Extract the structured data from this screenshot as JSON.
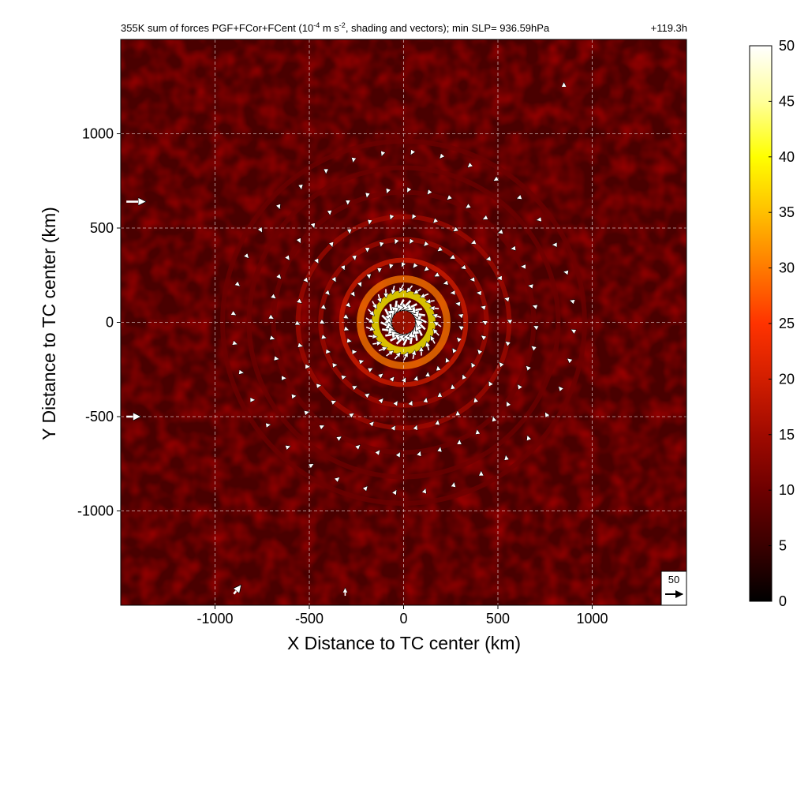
{
  "chart_data": {
    "type": "heatmap",
    "title": "355K sum of forces PGF+FCor+FCent (10",
    "title_units_exp": "-4",
    "title_units_mid": " m s",
    "title_units_exp2": "-2",
    "title_units_tail": ", shading and vectors); min SLP= 936.59hPa",
    "time_label": "+119.3h",
    "xlabel": "X Distance to TC center (km)",
    "ylabel": "Y Distance to TC center (km)",
    "xlim": [
      -1500,
      1500
    ],
    "ylim": [
      -1500,
      1500
    ],
    "x_ticks": [
      -1000,
      -500,
      0,
      500,
      1000
    ],
    "y_ticks": [
      -1000,
      -500,
      0,
      500,
      1000
    ],
    "x_tick_labels": [
      "-1000",
      "-500",
      "0",
      "500",
      "1000"
    ],
    "y_tick_labels": [
      "-1000",
      "-500",
      "0",
      "500",
      "1000"
    ],
    "grid": true,
    "colorbar": {
      "min": 0,
      "max": 50,
      "ticks": [
        0,
        5,
        10,
        15,
        20,
        25,
        30,
        35,
        40,
        45,
        50
      ],
      "tick_labels": [
        "0",
        "5",
        "10",
        "15",
        "20",
        "25",
        "30",
        "35",
        "40",
        "45",
        "50"
      ],
      "colormap": [
        "#000000",
        "#3a0000",
        "#6e0000",
        "#a00a00",
        "#d21e00",
        "#ff3300",
        "#ff7a00",
        "#ffbf00",
        "#ffff00",
        "#ffff9a",
        "#ffffff"
      ]
    },
    "reference_vector": {
      "value": 50,
      "label": "50"
    },
    "rings_km": [
      {
        "radius": 150,
        "value": 42
      },
      {
        "radius": 230,
        "value": 30
      },
      {
        "radius": 330,
        "value": 22
      },
      {
        "radius": 440,
        "value": 16
      },
      {
        "radius": 560,
        "value": 13
      },
      {
        "radius": 690,
        "value": 11
      },
      {
        "radius": 820,
        "value": 9
      },
      {
        "radius": 960,
        "value": 8
      }
    ],
    "vector_groups": [
      {
        "radius": 120,
        "count": 20,
        "magnitude": 40
      },
      {
        "radius": 200,
        "count": 26,
        "magnitude": 25
      },
      {
        "radius": 310,
        "count": 30,
        "magnitude": 10
      },
      {
        "radius": 430,
        "count": 34,
        "magnitude": 7
      },
      {
        "radius": 560,
        "count": 30,
        "magnitude": 6
      },
      {
        "radius": 700,
        "count": 40,
        "magnitude": 6
      },
      {
        "radius": 900,
        "count": 36,
        "magnitude": 6
      }
    ],
    "edge_vectors_km": [
      {
        "x": -1470,
        "y": 640,
        "u": 55,
        "v": 0
      },
      {
        "x": -1470,
        "y": -500,
        "u": 40,
        "v": 0
      },
      {
        "x": -900,
        "y": -1440,
        "u": 20,
        "v": 25
      },
      {
        "x": -310,
        "y": -1450,
        "u": 0,
        "v": 22
      },
      {
        "x": 850,
        "y": 1250,
        "u": 0,
        "v": 12
      }
    ]
  }
}
